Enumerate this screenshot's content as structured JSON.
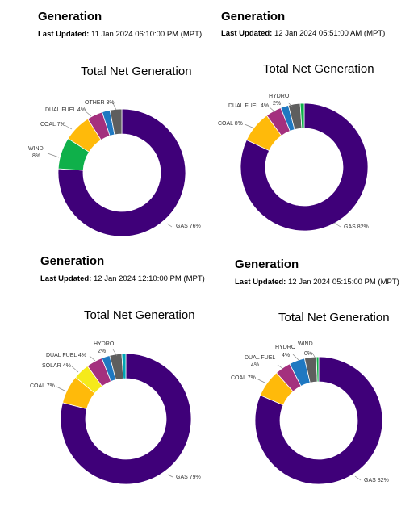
{
  "panels": [
    {
      "heading": "Generation",
      "updated_label": "Last Updated:",
      "updated_value": "11 Jan 2024 06:10:00 PM (MPT)",
      "chart_data": {
        "type": "pie",
        "title": "Total Net Generation",
        "slices": [
          {
            "name": "GAS",
            "value": 76,
            "label": "GAS 76%",
            "color": "#3f0079"
          },
          {
            "name": "WIND",
            "value": 8,
            "label": "WIND 8%",
            "color": "#0fb04a"
          },
          {
            "name": "COAL",
            "value": 7,
            "label": "COAL 7%",
            "color": "#ffba0a"
          },
          {
            "name": "DUAL FUEL",
            "value": 4,
            "label": "DUAL FUEL 4%",
            "color": "#a4307e"
          },
          {
            "name": "HYDRO",
            "value": 2,
            "label": "",
            "color": "#1f78c1"
          },
          {
            "name": "OTHER",
            "value": 3,
            "label": "OTHER 3%",
            "color": "#5e5e5e"
          }
        ]
      }
    },
    {
      "heading": "Generation",
      "updated_label": "Last Updated:",
      "updated_value": "12 Jan 2024 05:51:00 AM (MPT)",
      "chart_data": {
        "type": "pie",
        "title": "Total Net Generation",
        "slices": [
          {
            "name": "GAS",
            "value": 82,
            "label": "GAS 82%",
            "color": "#3f0079"
          },
          {
            "name": "COAL",
            "value": 8,
            "label": "COAL 8%",
            "color": "#ffba0a"
          },
          {
            "name": "DUAL FUEL",
            "value": 4,
            "label": "DUAL FUEL 4%",
            "color": "#a4307e"
          },
          {
            "name": "HYDRO",
            "value": 2,
            "label": "HYDRO 2%",
            "color": "#1f78c1"
          },
          {
            "name": "OTHER",
            "value": 3,
            "label": "",
            "color": "#5e5e5e"
          },
          {
            "name": "WIND",
            "value": 1,
            "label": "",
            "color": "#0fb04a"
          }
        ]
      }
    },
    {
      "heading": "Generation",
      "updated_label": "Last Updated:",
      "updated_value": "12 Jan 2024 12:10:00 PM (MPT)",
      "chart_data": {
        "type": "pie",
        "title": "Total Net Generation",
        "slices": [
          {
            "name": "GAS",
            "value": 79,
            "label": "GAS 79%",
            "color": "#3f0079"
          },
          {
            "name": "COAL",
            "value": 7,
            "label": "COAL 7%",
            "color": "#ffba0a"
          },
          {
            "name": "SOLAR",
            "value": 4,
            "label": "SOLAR 4%",
            "color": "#f5ea1a"
          },
          {
            "name": "DUAL FUEL",
            "value": 4,
            "label": "DUAL FUEL 4%",
            "color": "#a4307e"
          },
          {
            "name": "HYDRO",
            "value": 2,
            "label": "HYDRO 2%",
            "color": "#1f78c1"
          },
          {
            "name": "OTHER",
            "value": 3,
            "label": "",
            "color": "#5e5e5e"
          },
          {
            "name": "WIND",
            "value": 1,
            "label": "",
            "color": "#00a4b4"
          }
        ]
      }
    },
    {
      "heading": "Generation",
      "updated_label": "Last Updated:",
      "updated_value": "12 Jan 2024 05:15:00 PM (MPT)",
      "chart_data": {
        "type": "pie",
        "title": "Total Net Generation",
        "slices": [
          {
            "name": "GAS",
            "value": 82,
            "label": "GAS 82%",
            "color": "#3f0079"
          },
          {
            "name": "COAL",
            "value": 7,
            "label": "COAL 7%",
            "color": "#ffba0a"
          },
          {
            "name": "DUAL FUEL",
            "value": 4,
            "label": "DUAL FUEL 4%",
            "color": "#a4307e"
          },
          {
            "name": "HYDRO",
            "value": 4,
            "label": "HYDRO 4%",
            "color": "#1f78c1"
          },
          {
            "name": "OTHER",
            "value": 3,
            "label": "",
            "color": "#5e5e5e"
          },
          {
            "name": "WIND",
            "value": 0,
            "label": "WIND 0%",
            "color": "#0fb04a"
          }
        ]
      }
    }
  ]
}
